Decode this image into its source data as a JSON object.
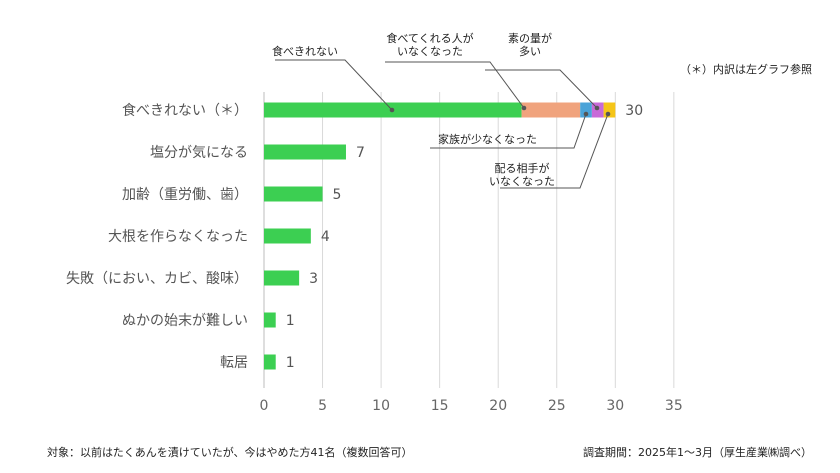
{
  "chart_data": {
    "type": "bar",
    "orientation": "horizontal",
    "categories": [
      "食べきれない（＊）",
      "塩分が気になる",
      "加齢（重労働、歯）",
      "大根を作らなくなった",
      "失敗（におい、カビ、酸味）",
      "ぬかの始末が難しい",
      "転居"
    ],
    "values": [
      30,
      7,
      5,
      4,
      3,
      1,
      1
    ],
    "value_labels": [
      "30",
      "7",
      "5",
      "4",
      "3",
      "1",
      "1"
    ],
    "xlim": [
      0,
      35
    ],
    "xticks": [
      0,
      5,
      10,
      15,
      20,
      25,
      30,
      35
    ],
    "xtick_labels": [
      "0",
      "5",
      "10",
      "15",
      "20",
      "25",
      "30",
      "35"
    ],
    "grid": "vertical",
    "legend": "none",
    "bar_color": "#3ccf52",
    "breakdown": {
      "category": "食べきれない（＊）",
      "segments": [
        {
          "name": "食べきれない",
          "value": 22,
          "color": "#3ccf52"
        },
        {
          "name": "食べてくれる人がいなくなった",
          "value": 5,
          "color": "#f0a37d"
        },
        {
          "name": "家族が少なくなった",
          "value": 1,
          "color": "#4aa3d8"
        },
        {
          "name": "素の量が多い",
          "value": 1,
          "color": "#c86ad8"
        },
        {
          "name": "配る相手がいなくなった",
          "value": 1,
          "color": "#f5c518"
        }
      ]
    },
    "annotations": [
      {
        "lines": [
          "食べきれない"
        ],
        "segment": 0
      },
      {
        "lines": [
          "食べてくれる人が",
          "いなくなった"
        ],
        "segment": 1
      },
      {
        "lines": [
          "素の量が",
          "多い"
        ],
        "segment": 3
      },
      {
        "lines": [
          "家族が少なくなった"
        ],
        "segment": 2
      },
      {
        "lines": [
          "配る相手が",
          "いなくなった"
        ],
        "segment": 4
      }
    ]
  },
  "notes": {
    "breakdown_note": "（＊）内訳は左グラフ参照",
    "subject": "対象：以前はたくあんを漬けていたが、今はやめた方41名（複数回答可）",
    "source": "調査期間：2025年1～3月（厚生産業㈱調べ）"
  }
}
